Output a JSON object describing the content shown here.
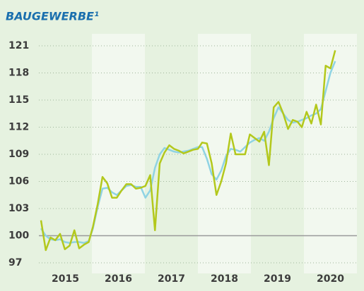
{
  "chart_data": {
    "type": "line",
    "title": "BAUGEWERBE¹",
    "x": [
      2015.04,
      2015.13,
      2015.22,
      2015.31,
      2015.4,
      2015.49,
      2015.58,
      2015.67,
      2015.76,
      2015.85,
      2015.94,
      2016.02,
      2016.11,
      2016.2,
      2016.29,
      2016.38,
      2016.47,
      2016.56,
      2016.65,
      2016.74,
      2016.83,
      2016.92,
      2017.01,
      2017.1,
      2017.19,
      2017.28,
      2017.37,
      2017.46,
      2017.55,
      2017.64,
      2017.73,
      2017.82,
      2017.91,
      2018.0,
      2018.08,
      2018.17,
      2018.26,
      2018.35,
      2018.44,
      2018.53,
      2018.62,
      2018.71,
      2018.8,
      2018.89,
      2018.98,
      2019.07,
      2019.16,
      2019.25,
      2019.34,
      2019.43,
      2019.52,
      2019.61,
      2019.7,
      2019.79,
      2019.88,
      2019.96,
      2020.05,
      2020.14,
      2020.23,
      2020.32,
      2020.41,
      2020.5,
      2020.59
    ],
    "series": [
      {
        "color": "#8fd3e3",
        "values": [
          100.8,
          100.0,
          99.6,
          99.5,
          99.6,
          99.3,
          99.2,
          99.3,
          99.3,
          99.2,
          99.4,
          100.8,
          103.2,
          105.2,
          105.3,
          104.8,
          104.5,
          105.0,
          105.5,
          105.6,
          105.4,
          105.4,
          104.2,
          105.0,
          107.5,
          109.0,
          109.7,
          109.5,
          109.3,
          109.2,
          109.3,
          109.4,
          109.6,
          109.8,
          109.8,
          108.5,
          106.8,
          106.2,
          107.2,
          108.8,
          109.6,
          109.5,
          109.3,
          109.8,
          110.3,
          110.6,
          110.8,
          110.5,
          111.5,
          113.0,
          114.2,
          113.5,
          112.8,
          112.5,
          112.6,
          112.8,
          113.0,
          113.3,
          113.5,
          114.0,
          116.0,
          118.0,
          119.3
        ]
      },
      {
        "color": "#b3c81c",
        "values": [
          101.7,
          98.4,
          99.8,
          99.5,
          100.2,
          98.5,
          98.9,
          100.6,
          98.6,
          99.0,
          99.3,
          101.0,
          103.5,
          106.5,
          105.8,
          104.2,
          104.2,
          105.0,
          105.7,
          105.7,
          105.2,
          105.3,
          105.5,
          106.7,
          100.6,
          108.0,
          109.2,
          110.0,
          109.6,
          109.4,
          109.1,
          109.3,
          109.5,
          109.6,
          110.3,
          110.2,
          108.0,
          104.5,
          106.0,
          108.0,
          111.3,
          109.0,
          109.0,
          109.0,
          111.2,
          110.8,
          110.4,
          111.5,
          107.8,
          114.2,
          114.8,
          113.5,
          111.8,
          112.8,
          112.6,
          112.0,
          113.7,
          112.4,
          114.5,
          112.3,
          118.8,
          118.5,
          120.5
        ]
      }
    ],
    "xlim": [
      2015,
      2021
    ],
    "xticks": [
      {
        "value": 2015.5,
        "label": "2015"
      },
      {
        "value": 2016.5,
        "label": "2016"
      },
      {
        "value": 2017.5,
        "label": "2017"
      },
      {
        "value": 2018.5,
        "label": "2018"
      },
      {
        "value": 2019.5,
        "label": "2019"
      },
      {
        "value": 2020.5,
        "label": "2020"
      }
    ],
    "ylim": [
      97,
      121
    ],
    "yticks": [
      97,
      100,
      103,
      106,
      109,
      112,
      115,
      118,
      121
    ],
    "grid": true
  }
}
